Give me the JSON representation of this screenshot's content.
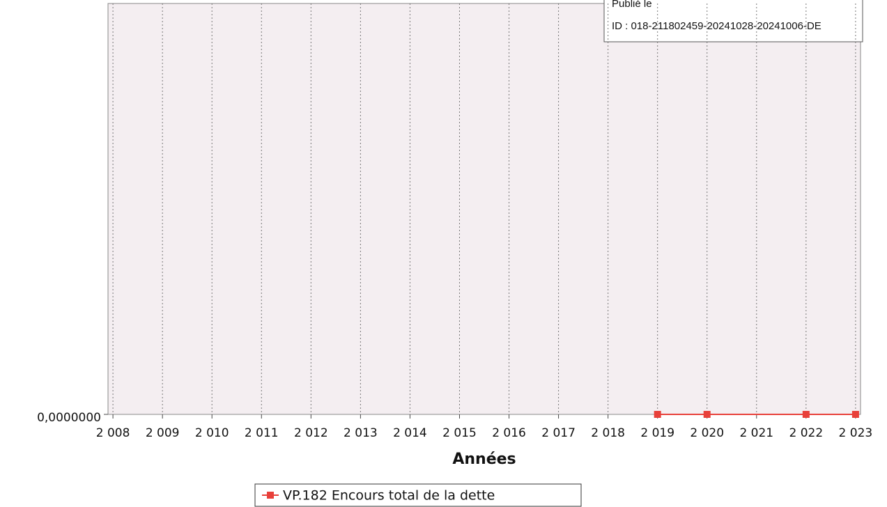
{
  "chart_data": {
    "type": "line",
    "xlabel": "Années",
    "x": [
      2019,
      2020,
      2022,
      2023
    ],
    "series": [
      {
        "name": "VP.182 Encours total de la dette",
        "color": "#e8403a",
        "values": [
          0,
          0,
          0,
          0
        ]
      }
    ],
    "xlim": [
      2007.9,
      2023.1
    ],
    "xticks": [
      {
        "value": 2008,
        "label": "2 008"
      },
      {
        "value": 2009,
        "label": "2 009"
      },
      {
        "value": 2010,
        "label": "2 010"
      },
      {
        "value": 2011,
        "label": "2 011"
      },
      {
        "value": 2012,
        "label": "2 012"
      },
      {
        "value": 2013,
        "label": "2 013"
      },
      {
        "value": 2014,
        "label": "2 014"
      },
      {
        "value": 2015,
        "label": "2 015"
      },
      {
        "value": 2016,
        "label": "2 016"
      },
      {
        "value": 2017,
        "label": "2 017"
      },
      {
        "value": 2018,
        "label": "2 018"
      },
      {
        "value": 2019,
        "label": "2 019"
      },
      {
        "value": 2020,
        "label": "2 020"
      },
      {
        "value": 2021,
        "label": "2 021"
      },
      {
        "value": 2022,
        "label": "2 022"
      },
      {
        "value": 2023,
        "label": "2 023"
      }
    ],
    "ylim": [
      0,
      1
    ],
    "yticks": [
      {
        "value": 0,
        "label": "0,0000000"
      }
    ],
    "grid": true,
    "legend": "bottom",
    "annotations": [
      "Publié le",
      "ID : 018-211802459-20241028-20241006-DE"
    ]
  }
}
